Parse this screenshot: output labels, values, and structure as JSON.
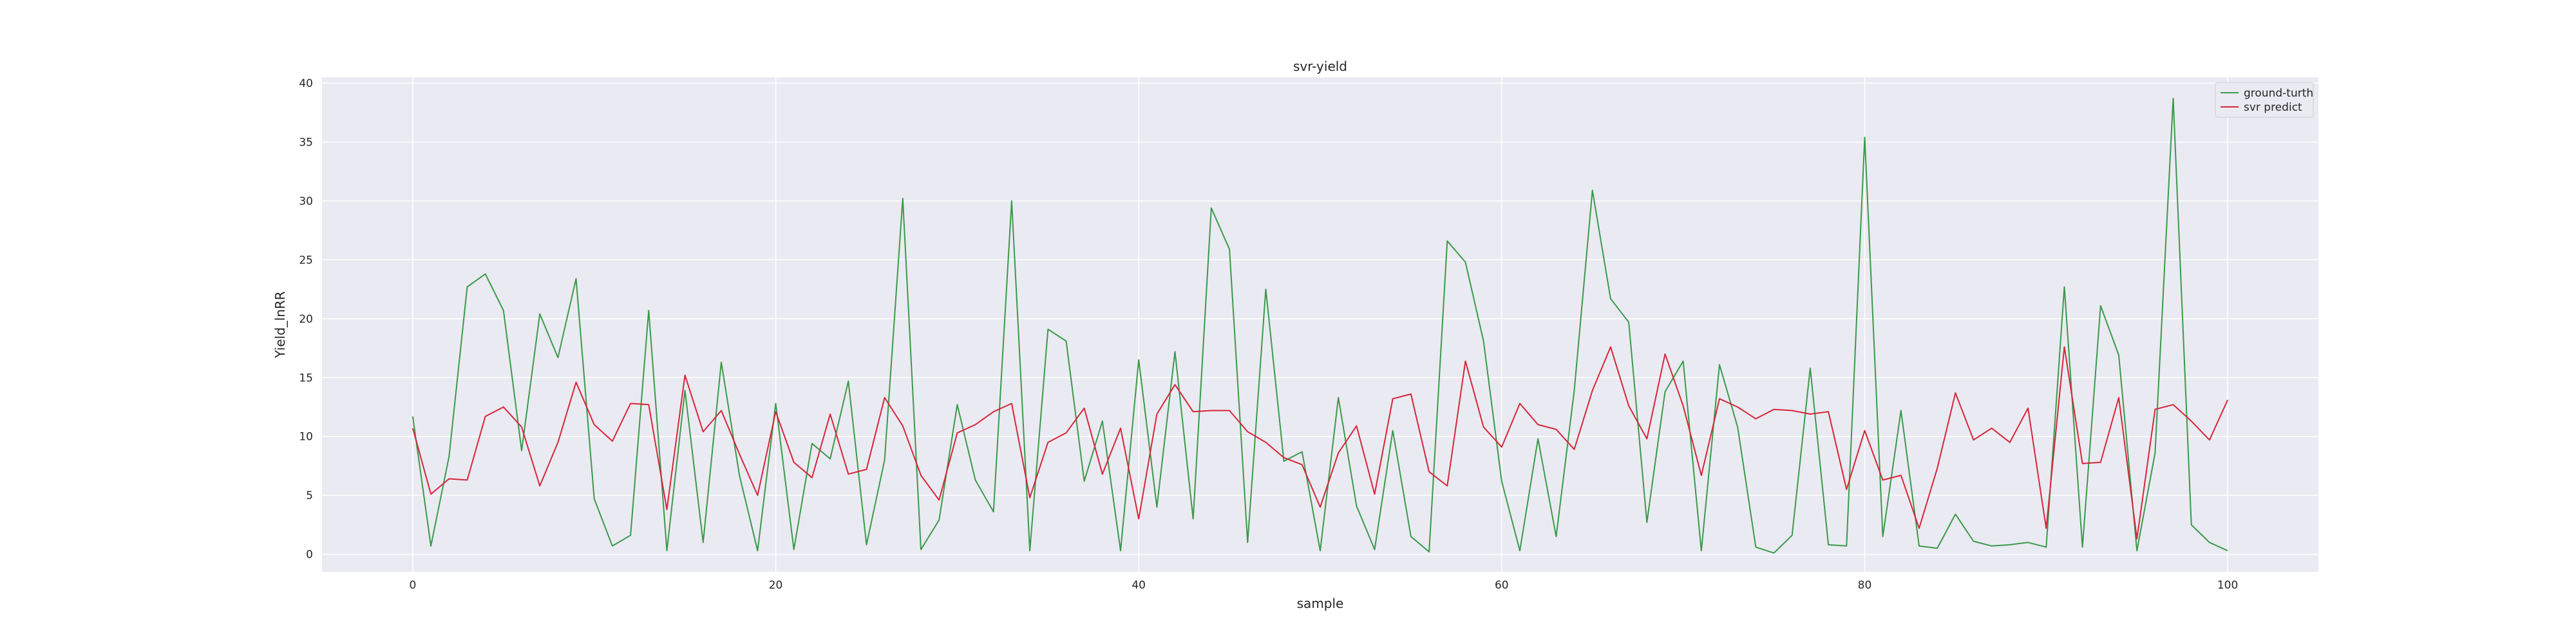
{
  "chart_data": {
    "type": "line",
    "title": "svr-yield",
    "xlabel": "sample",
    "ylabel": "Yield_lnRR",
    "xlim": [
      -5,
      105
    ],
    "ylim": [
      -1.5,
      40.5
    ],
    "x_ticks": [
      0,
      20,
      40,
      60,
      80,
      100
    ],
    "y_ticks": [
      0,
      5,
      10,
      15,
      20,
      25,
      30,
      35,
      40
    ],
    "grid": true,
    "legend_position": "upper right",
    "colors": {
      "plot_background": "#eaeaf2",
      "grid": "#ffffff",
      "ground_truth": "#3a9a4a",
      "svr_predict": "#d62639"
    },
    "series": [
      {
        "name": "ground-turth",
        "color": "#3a9a4a",
        "values": [
          11.7,
          0.7,
          8.3,
          22.7,
          23.8,
          20.7,
          8.8,
          20.4,
          16.7,
          23.4,
          4.7,
          0.7,
          1.6,
          20.7,
          0.3,
          13.9,
          1.0,
          16.3,
          6.7,
          0.3,
          12.8,
          0.4,
          9.4,
          8.1,
          14.7,
          0.8,
          8.0,
          30.2,
          0.4,
          2.9,
          12.7,
          6.3,
          3.6,
          30.0,
          0.3,
          19.1,
          18.1,
          6.2,
          11.3,
          0.3,
          16.5,
          4.0,
          17.2,
          3.0,
          29.4,
          25.9,
          1.0,
          22.5,
          7.9,
          8.7,
          0.3,
          13.3,
          4.1,
          0.4,
          10.5,
          1.5,
          0.2,
          26.6,
          24.8,
          18.1,
          6.2,
          0.3,
          9.8,
          1.5,
          13.9,
          30.9,
          21.7,
          19.7,
          2.7,
          13.8,
          16.4,
          0.3,
          16.1,
          10.8,
          0.6,
          0.1,
          1.6,
          15.8,
          0.8,
          0.7,
          35.4,
          1.5,
          12.2,
          0.7,
          0.5,
          3.4,
          1.1,
          0.7,
          0.8,
          1.0,
          0.6,
          22.7,
          0.6,
          21.1,
          16.9,
          0.3,
          8.6,
          38.7,
          2.5,
          1.0,
          0.3
        ]
      },
      {
        "name": "svr predict",
        "color": "#d62639",
        "values": [
          10.7,
          5.1,
          6.4,
          6.3,
          11.7,
          12.5,
          10.8,
          5.8,
          9.5,
          14.6,
          11.0,
          9.6,
          12.8,
          12.7,
          3.8,
          15.2,
          10.4,
          12.2,
          8.5,
          5.0,
          12.1,
          7.8,
          6.5,
          11.9,
          6.8,
          7.2,
          13.3,
          10.9,
          6.7,
          4.6,
          10.3,
          11.0,
          12.1,
          12.8,
          4.8,
          9.5,
          10.3,
          12.4,
          6.8,
          10.7,
          3.0,
          11.9,
          14.4,
          12.1,
          12.2,
          12.2,
          10.4,
          9.5,
          8.2,
          7.6,
          4.0,
          8.6,
          10.9,
          5.1,
          13.2,
          13.6,
          7.0,
          5.8,
          16.4,
          10.8,
          9.1,
          12.8,
          11.0,
          10.6,
          8.9,
          13.9,
          17.6,
          12.6,
          9.8,
          17.0,
          12.6,
          6.7,
          13.2,
          12.5,
          11.5,
          12.3,
          12.2,
          11.9,
          12.1,
          5.5,
          10.5,
          6.3,
          6.7,
          2.2,
          7.3,
          13.7,
          9.7,
          10.7,
          9.5,
          12.4,
          2.2,
          17.6,
          7.7,
          7.8,
          13.3,
          1.3,
          12.3,
          12.7,
          11.3,
          9.7,
          13.1
        ]
      }
    ]
  }
}
